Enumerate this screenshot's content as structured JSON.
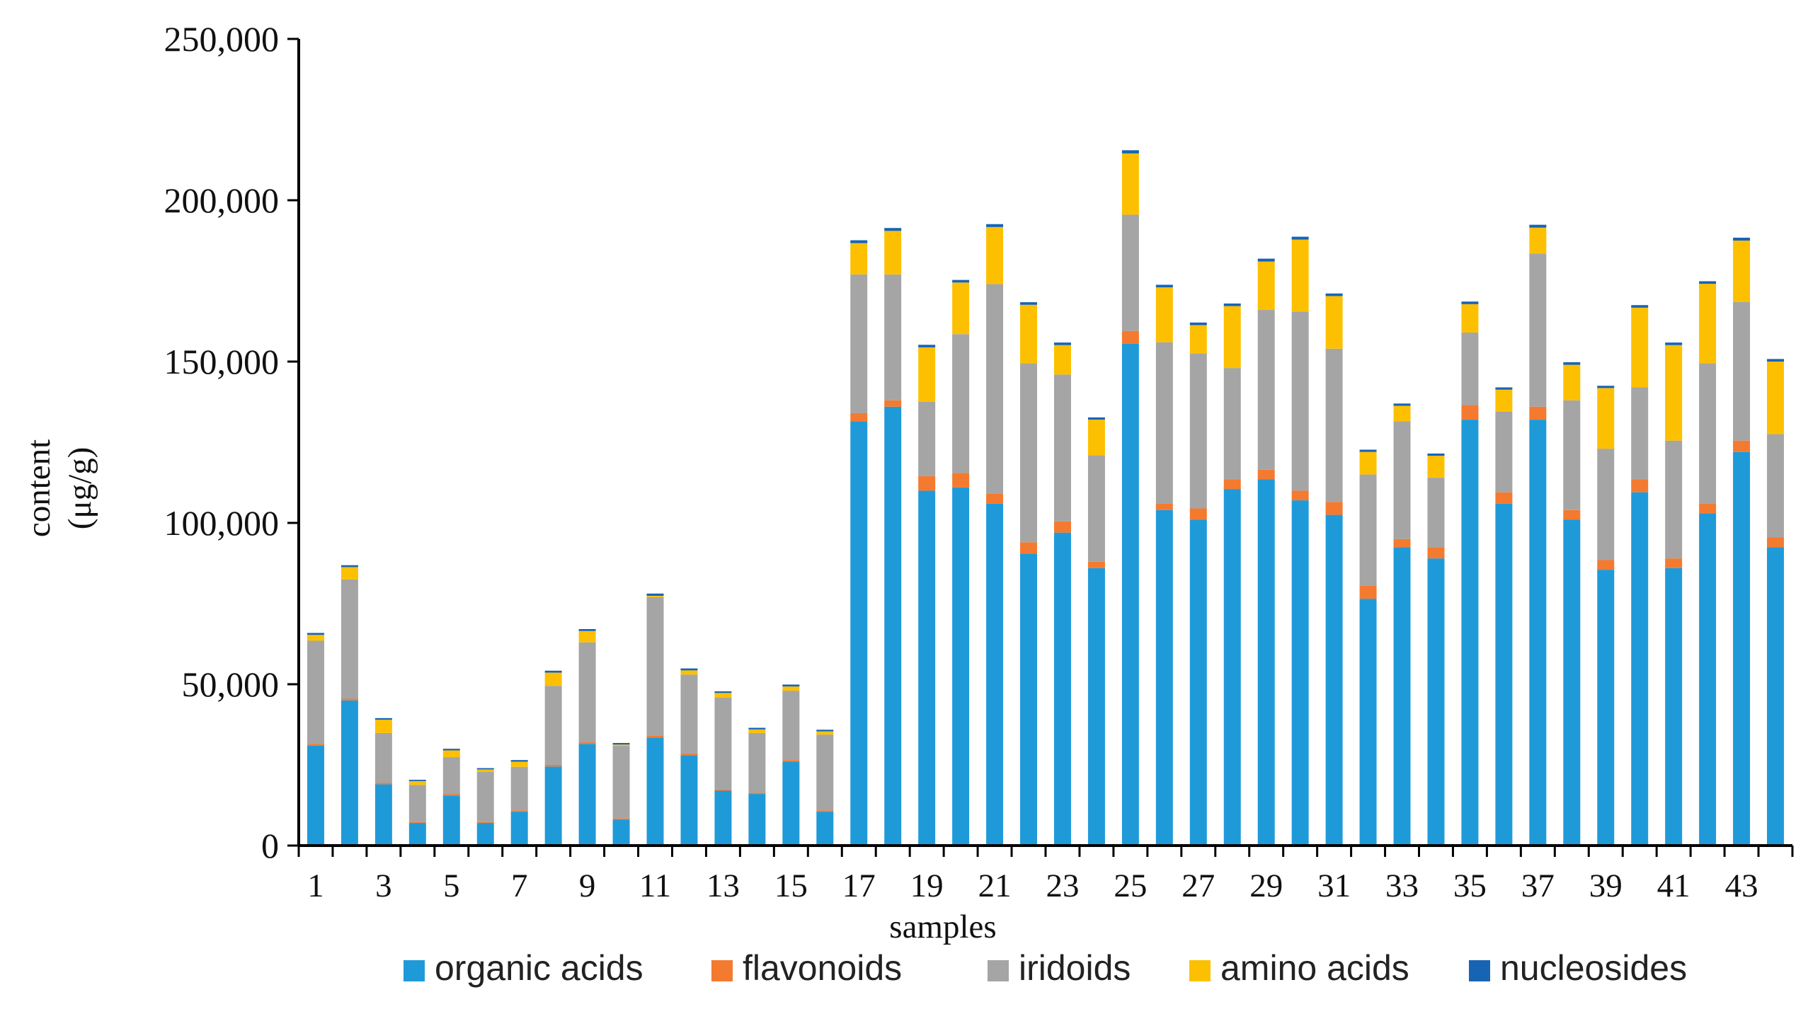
{
  "chart_data": {
    "type": "bar",
    "stacked": true,
    "title": "",
    "xlabel": "samples",
    "ylabel_lines": [
      "content",
      "(μg/g)"
    ],
    "ylim": [
      0,
      250000
    ],
    "yticks": [
      0,
      50000,
      100000,
      150000,
      200000,
      250000
    ],
    "ytick_labels": [
      "0",
      "50,000",
      "100,000",
      "150,000",
      "200,000",
      "250,000"
    ],
    "categories": [
      "1",
      "2",
      "3",
      "4",
      "5",
      "6",
      "7",
      "8",
      "9",
      "10",
      "11",
      "12",
      "13",
      "14",
      "15",
      "16",
      "17",
      "18",
      "19",
      "20",
      "21",
      "22",
      "23",
      "24",
      "25",
      "26",
      "27",
      "28",
      "29",
      "30",
      "31",
      "32",
      "33",
      "34",
      "35",
      "36",
      "37",
      "38",
      "39",
      "40",
      "41",
      "42",
      "43",
      "44"
    ],
    "xtick_labels_shown": [
      "1",
      "",
      "3",
      "",
      "5",
      "",
      "7",
      "",
      "9",
      "",
      "11",
      "",
      "13",
      "",
      "15",
      "",
      "17",
      "",
      "19",
      "",
      "21",
      "",
      "23",
      "",
      "25",
      "",
      "27",
      "",
      "29",
      "",
      "31",
      "",
      "33",
      "",
      "35",
      "",
      "37",
      "",
      "39",
      "",
      "41",
      "",
      "43",
      ""
    ],
    "legend_position": "bottom",
    "series": [
      {
        "name": "organic acids",
        "color": "#1f9ad9",
        "values": [
          31000,
          45000,
          19000,
          7000,
          15500,
          7000,
          10500,
          24500,
          31500,
          8000,
          33500,
          28000,
          17000,
          16000,
          26000,
          10500,
          131500,
          136000,
          110000,
          111000,
          106000,
          90500,
          97000,
          86000,
          155500,
          104000,
          101000,
          110500,
          113500,
          107000,
          102500,
          76500,
          92500,
          89000,
          132000,
          106000,
          132000,
          101000,
          85500,
          109500,
          86000,
          103000,
          122000,
          92500
        ]
      },
      {
        "name": "flavonoids",
        "color": "#f47a30",
        "values": [
          500,
          500,
          400,
          300,
          400,
          300,
          400,
          500,
          500,
          400,
          500,
          500,
          400,
          400,
          500,
          400,
          2500,
          2000,
          4500,
          4500,
          3000,
          3500,
          3500,
          2000,
          4000,
          2000,
          3500,
          3000,
          3000,
          3000,
          4000,
          4000,
          2500,
          3500,
          4500,
          3500,
          4000,
          3000,
          3000,
          4000,
          3000,
          3000,
          3500,
          3000
        ]
      },
      {
        "name": "iridoids",
        "color": "#a5a5a5",
        "values": [
          32000,
          37000,
          15500,
          11500,
          11500,
          15500,
          13500,
          24500,
          31000,
          22500,
          43000,
          24500,
          28500,
          18500,
          21500,
          23500,
          43000,
          39000,
          23000,
          43000,
          65000,
          55500,
          45500,
          33000,
          36000,
          50000,
          48000,
          34500,
          49500,
          55500,
          47500,
          34500,
          36500,
          21500,
          22500,
          25000,
          47500,
          34000,
          34500,
          28500,
          36500,
          43500,
          43000,
          32000
        ]
      },
      {
        "name": "amino acids",
        "color": "#fdc000",
        "values": [
          1800,
          3800,
          4100,
          1200,
          2100,
          800,
          1600,
          4100,
          3500,
          400,
          400,
          1300,
          1400,
          1100,
          1300,
          1000,
          9700,
          13500,
          16900,
          16000,
          17700,
          18100,
          9100,
          11000,
          19000,
          17000,
          8800,
          19200,
          15000,
          22300,
          16300,
          7000,
          4800,
          6800,
          8800,
          6800,
          8000,
          11000,
          18800,
          24700,
          29600,
          24600,
          19000,
          22500
        ]
      },
      {
        "name": "nucleosides",
        "color": "#1764b5",
        "values": [
          600,
          600,
          500,
          400,
          500,
          400,
          500,
          600,
          600,
          500,
          700,
          600,
          500,
          500,
          600,
          500,
          900,
          900,
          800,
          800,
          900,
          800,
          800,
          700,
          1000,
          800,
          800,
          800,
          900,
          900,
          800,
          700,
          700,
          700,
          800,
          700,
          900,
          800,
          700,
          800,
          800,
          800,
          900,
          800
        ]
      }
    ]
  }
}
